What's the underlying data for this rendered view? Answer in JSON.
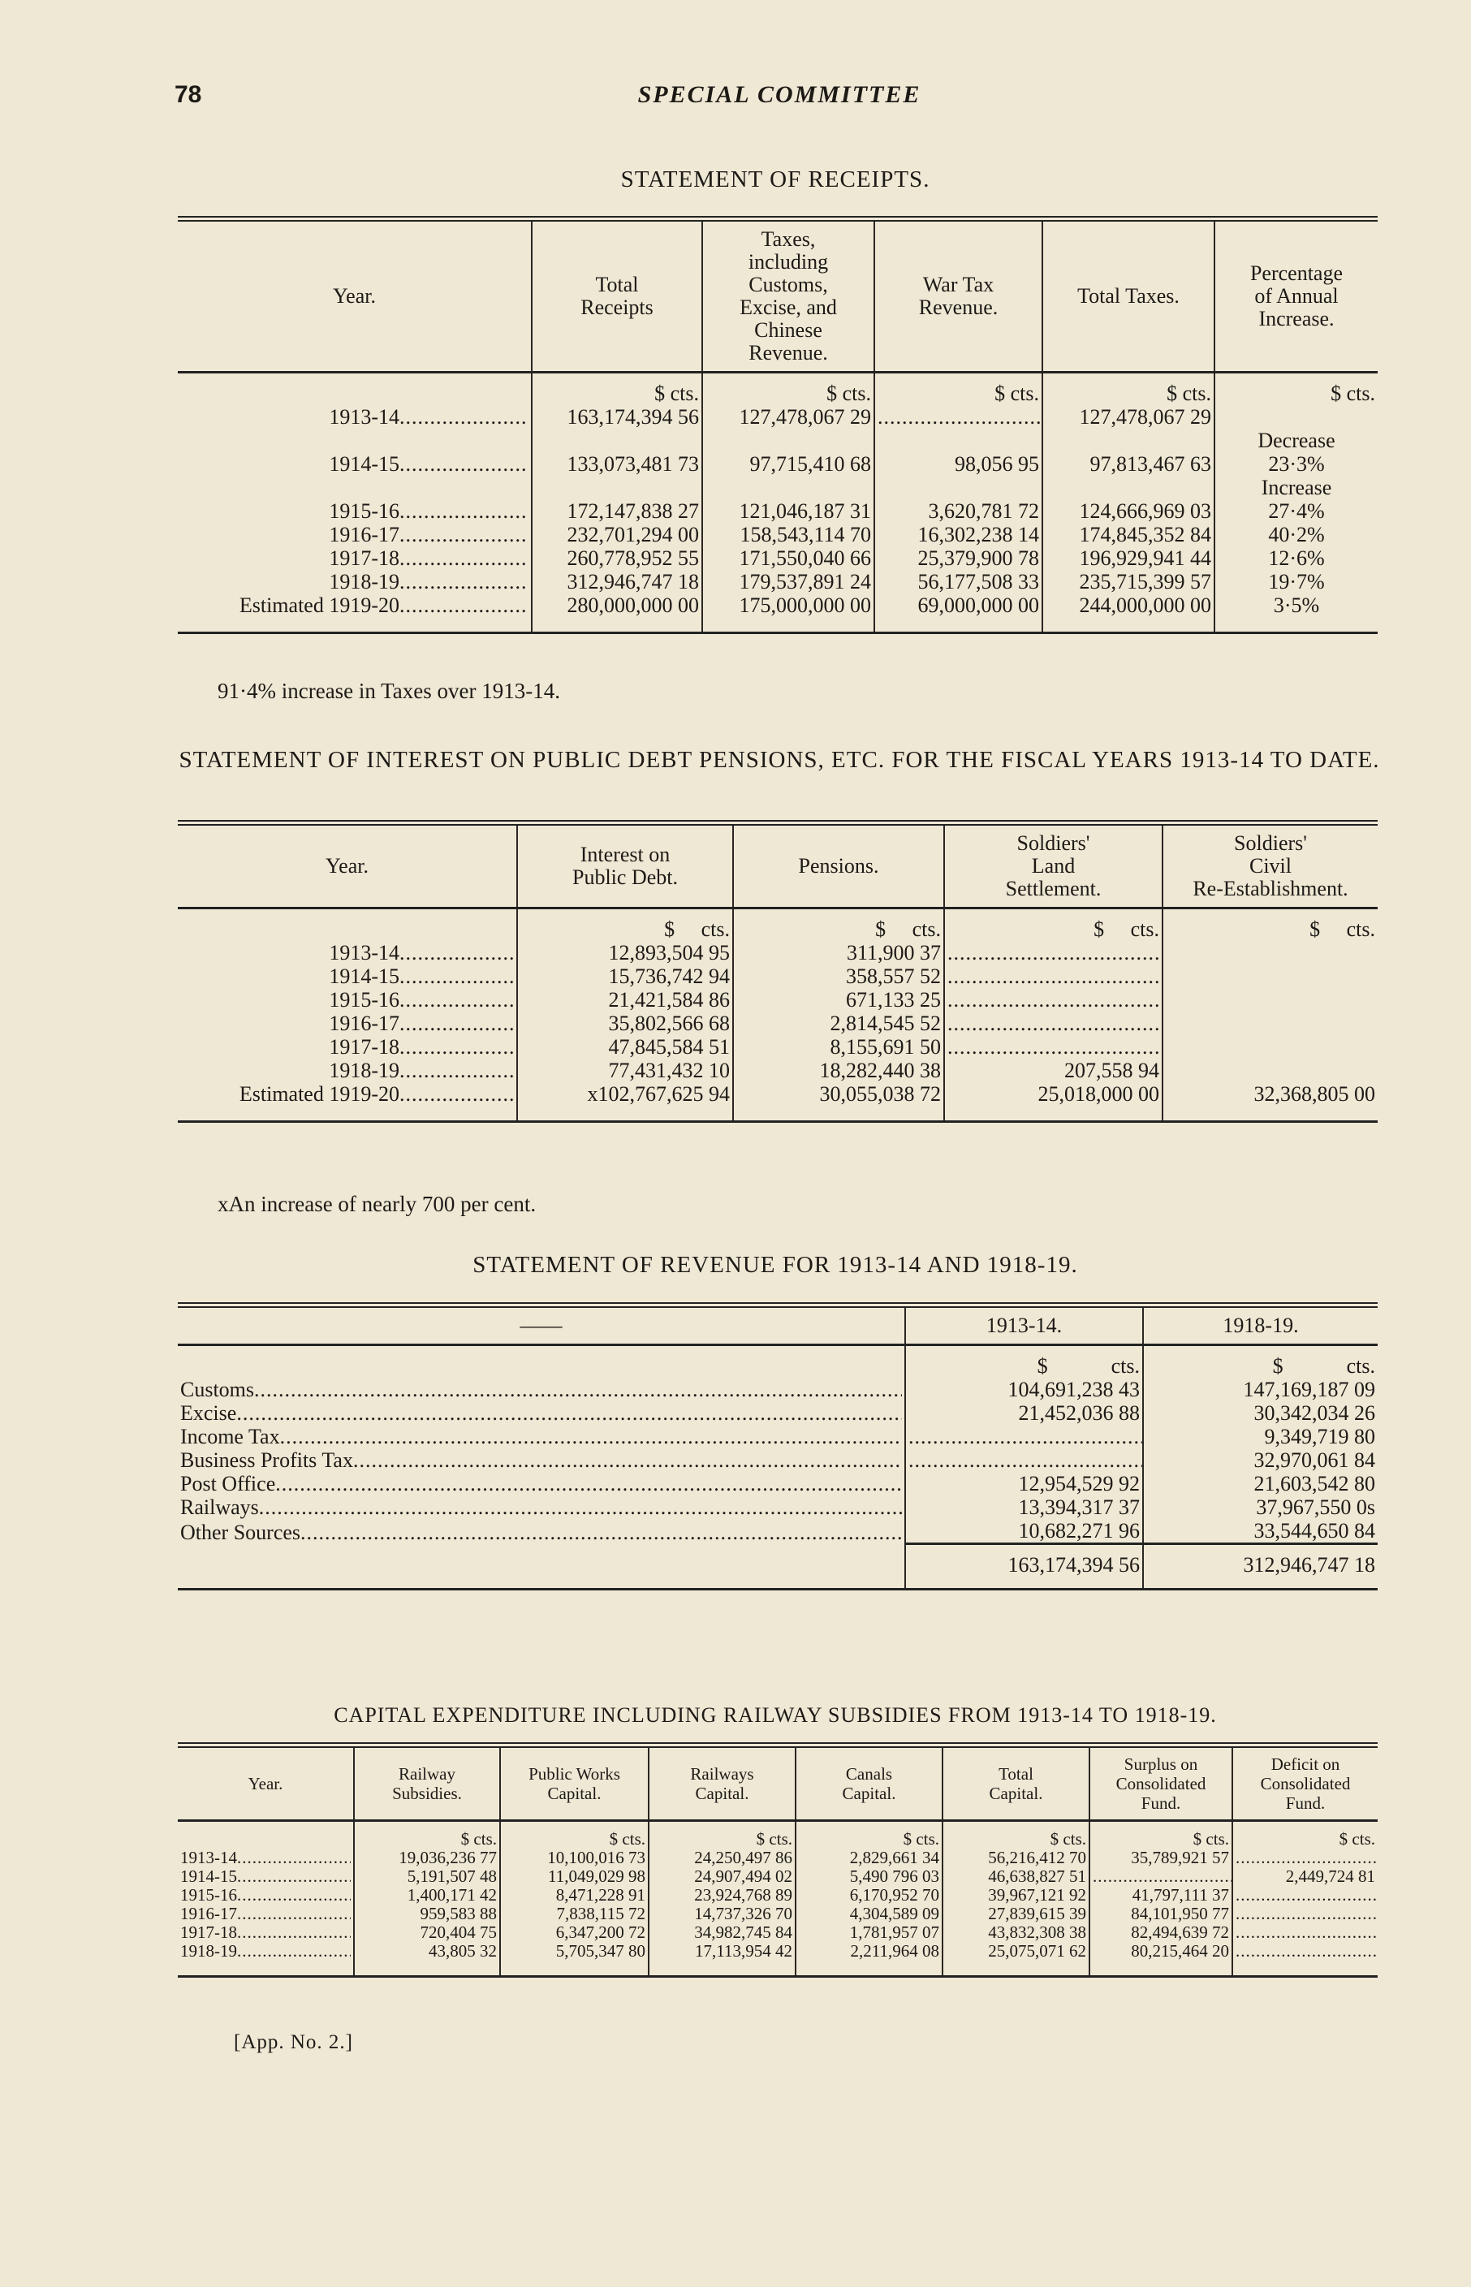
{
  "page_number": "78",
  "running_head": "SPECIAL COMMITTEE",
  "receipts": {
    "title": "STATEMENT OF RECEIPTS.",
    "headers": [
      "Year.",
      "Total\nReceipts",
      "Taxes,\nincluding\nCustoms,\nExcise, and\nChinese\nRevenue.",
      "War Tax\nRevenue.",
      "Total Taxes.",
      "Percentage\nof Annual\nIncrease."
    ],
    "units": [
      "",
      "$ cts.",
      "$ cts.",
      "$ cts.",
      "$ cts.",
      "$ cts."
    ],
    "rows": [
      {
        "year": "1913-14",
        "cells": [
          "163,174,394 56",
          "127,478,067 29",
          null,
          "127,478,067 29",
          ""
        ]
      },
      {
        "year": "",
        "cells": [
          "",
          "",
          "",
          "",
          "Decrease"
        ]
      },
      {
        "year": "1914-15",
        "cells": [
          "133,073,481 73",
          "97,715,410 68",
          "98,056 95",
          "97,813,467 63",
          "23·3%"
        ]
      },
      {
        "year": "",
        "cells": [
          "",
          "",
          "",
          "",
          "Increase"
        ]
      },
      {
        "year": "1915-16",
        "cells": [
          "172,147,838 27",
          "121,046,187 31",
          "3,620,781 72",
          "124,666,969 03",
          "27·4%"
        ]
      },
      {
        "year": "1916-17",
        "cells": [
          "232,701,294 00",
          "158,543,114 70",
          "16,302,238 14",
          "174,845,352 84",
          "40·2%"
        ]
      },
      {
        "year": "1917-18",
        "cells": [
          "260,778,952 55",
          "171,550,040 66",
          "25,379,900 78",
          "196,929,941 44",
          "12·6%"
        ]
      },
      {
        "year": "1918-19",
        "cells": [
          "312,946,747 18",
          "179,537,891 24",
          "56,177,508 33",
          "235,715,399 57",
          "19·7%"
        ]
      },
      {
        "year": "Estimated 1919-20",
        "cells": [
          "280,000,000 00",
          "175,000,000 00",
          "69,000,000 00",
          "244,000,000 00",
          "3·5%"
        ]
      }
    ],
    "note": "91·4% increase in Taxes over 1913-14."
  },
  "interest": {
    "title": "STATEMENT OF INTEREST ON PUBLIC DEBT PENSIONS, ETC. FOR THE FISCAL YEARS 1913-14 TO DATE.",
    "headers": [
      "Year.",
      "Interest on\nPublic Debt.",
      "Pensions.",
      "Soldiers'\nLand\nSettlement.",
      "Soldiers'\nCivil\nRe-Establishment."
    ],
    "units": [
      "",
      "$     cts.",
      "$     cts.",
      "$     cts.",
      "$     cts."
    ],
    "rows": [
      {
        "year": "1913-14",
        "cells": [
          "12,893,504 95",
          "311,900 37",
          null,
          ""
        ]
      },
      {
        "year": "1914-15",
        "cells": [
          "15,736,742 94",
          "358,557 52",
          null,
          ""
        ]
      },
      {
        "year": "1915-16",
        "cells": [
          "21,421,584 86",
          "671,133 25",
          null,
          ""
        ]
      },
      {
        "year": "1916-17",
        "cells": [
          "35,802,566 68",
          "2,814,545 52",
          null,
          ""
        ]
      },
      {
        "year": "1917-18",
        "cells": [
          "47,845,584 51",
          "8,155,691 50",
          null,
          ""
        ]
      },
      {
        "year": "1918-19",
        "cells": [
          "77,431,432 10",
          "18,282,440 38",
          "207,558 94",
          ""
        ]
      },
      {
        "year": "Estimated 1919-20",
        "cells": [
          "x102,767,625 94",
          "30,055,038 72",
          "25,018,000 00",
          "32,368,805 00"
        ]
      }
    ],
    "note": "xAn increase of nearly 700 per cent."
  },
  "revenue": {
    "title": "STATEMENT OF REVENUE FOR 1913-14 AND 1918-19.",
    "headers": [
      "——",
      "1913-14.",
      "1918-19."
    ],
    "units": [
      "",
      "$            cts.",
      "$            cts."
    ],
    "rows": [
      {
        "year": "Customs",
        "cells": [
          "104,691,238 43",
          "147,169,187 09"
        ]
      },
      {
        "year": "Excise",
        "cells": [
          "21,452,036 88",
          "30,342,034 26"
        ]
      },
      {
        "year": "Income Tax",
        "cells": [
          null,
          "9,349,719 80"
        ]
      },
      {
        "year": "Business Profits Tax",
        "cells": [
          null,
          "32,970,061 84"
        ]
      },
      {
        "year": "Post Office",
        "cells": [
          "12,954,529 92",
          "21,603,542 80"
        ]
      },
      {
        "year": "Railways",
        "cells": [
          "13,394,317 37",
          "37,967,550 0s"
        ]
      },
      {
        "year": "Other Sources",
        "cells": [
          "10,682,271 96",
          "33,544,650 84"
        ]
      }
    ],
    "totals": [
      "163,174,394 56",
      "312,946,747 18"
    ]
  },
  "capital": {
    "title": "CAPITAL EXPENDITURE INCLUDING RAILWAY SUBSIDIES FROM 1913-14 TO 1918-19.",
    "headers": [
      "Year.",
      "Railway\nSubsidies.",
      "Public Works\nCapital.",
      "Railways\nCapital.",
      "Canals\nCapital.",
      "Total\nCapital.",
      "Surplus on\nConsolidated\nFund.",
      "Deficit on\nConsolidated\nFund."
    ],
    "units": [
      "",
      "$ cts.",
      "$ cts.",
      "$ cts.",
      "$ cts.",
      "$ cts.",
      "$ cts.",
      "$ cts."
    ],
    "rows": [
      {
        "year": "1913-14",
        "cells": [
          "19,036,236 77",
          "10,100,016 73",
          "24,250,497 86",
          "2,829,661 34",
          "56,216,412 70",
          "35,789,921 57",
          null
        ]
      },
      {
        "year": "1914-15",
        "cells": [
          "5,191,507 48",
          "11,049,029 98",
          "24,907,494 02",
          "5,490 796 03",
          "46,638,827 51",
          null,
          "2,449,724 81"
        ]
      },
      {
        "year": "1915-16",
        "cells": [
          "1,400,171 42",
          "8,471,228 91",
          "23,924,768 89",
          "6,170,952 70",
          "39,967,121 92",
          "41,797,111 37",
          null
        ]
      },
      {
        "year": "1916-17",
        "cells": [
          "959,583 88",
          "7,838,115 72",
          "14,737,326 70",
          "4,304,589 09",
          "27,839,615 39",
          "84,101,950 77",
          null
        ]
      },
      {
        "year": "1917-18",
        "cells": [
          "720,404 75",
          "6,347,200 72",
          "34,982,745 84",
          "1,781,957 07",
          "43,832,308 38",
          "82,494,639 72",
          null
        ]
      },
      {
        "year": "1918-19",
        "cells": [
          "43,805 32",
          "5,705,347 80",
          "17,113,954 42",
          "2,211,964 08",
          "25,075,071 62",
          "80,215,464 20",
          null
        ]
      }
    ]
  },
  "footer": "[App. No. 2.]"
}
